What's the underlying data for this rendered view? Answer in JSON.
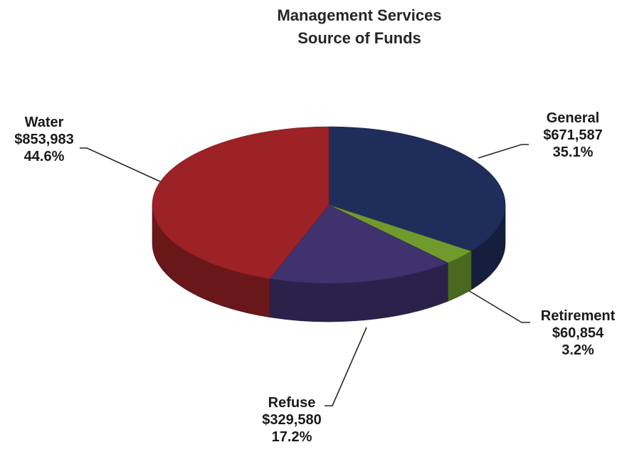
{
  "chart_data": {
    "type": "pie",
    "title": "Management Services",
    "subtitle": "Source of Funds",
    "slices": [
      {
        "name": "General",
        "value": 671587,
        "value_label": "$671,587",
        "percent_label": "35.1%",
        "color": "#1f2d5a"
      },
      {
        "name": "Retirement",
        "value": 60854,
        "value_label": "$60,854",
        "percent_label": "3.2%",
        "color": "#6f9b2c"
      },
      {
        "name": "Refuse",
        "value": 329580,
        "value_label": "$329,580",
        "percent_label": "17.2%",
        "color": "#3f326f"
      },
      {
        "name": "Water",
        "value": 853983,
        "value_label": "$853,983",
        "percent_label": "44.6%",
        "color": "#9c2226"
      }
    ]
  }
}
